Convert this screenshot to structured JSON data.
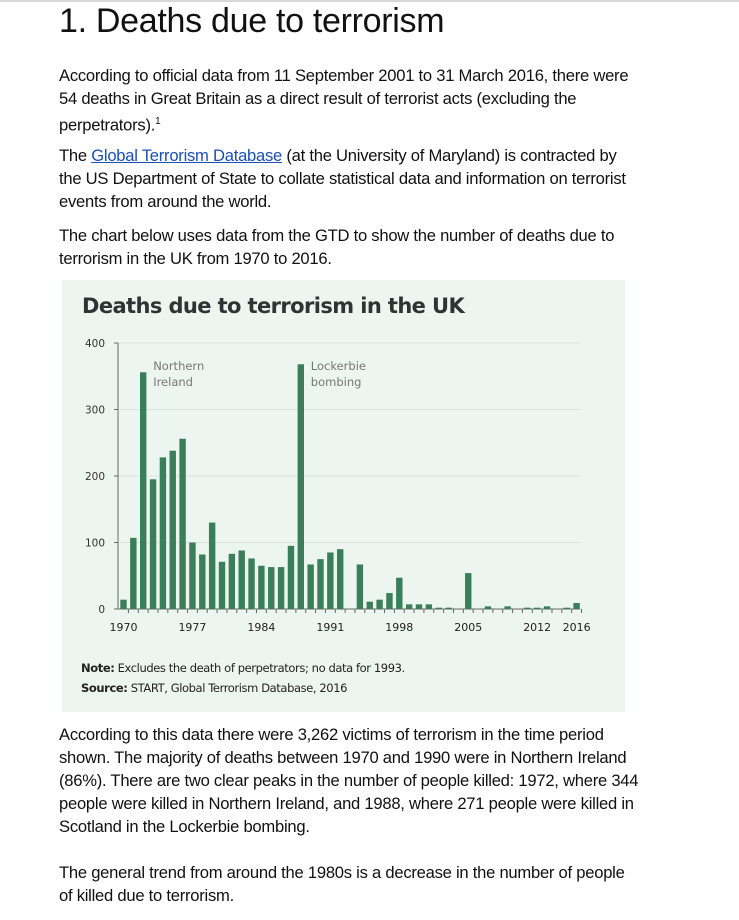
{
  "heading": "1. Deaths due to terrorism",
  "paragraphs": {
    "p1": "According to official data from 11 September 2001 to 31 March 2016, there were 54 deaths in Great Britain as a direct result of terrorist acts (excluding the perpetrators).",
    "p1_footnote": "1",
    "p2_before": "The ",
    "p2_link": "Global Terrorism Database",
    "p2_after": " (at the University of Maryland) is contracted by the US Department of State to collate statistical data and information on terrorist events from around the world.",
    "p3": "The chart below uses data from the GTD to show the number of deaths due to terrorism in the UK from 1970 to 2016.",
    "p4": "According to this data there were 3,262 victims of terrorism in the time period shown. The majority of deaths between 1970 and 1990 were in Northern Ireland (86%). There are two clear peaks in the number of people killed: 1972, where 344 people were killed in Northern Ireland, and 1988, where 271 people were killed in Scotland in the Lockerbie bombing.",
    "p5": "The general trend from around the 1980s is a decrease in the number of people of killed due to terrorism."
  },
  "chart_note": {
    "note_label": "Note:",
    "note_text": " Excludes the death of perpetrators; no data for 1993.",
    "source_label": "Source:",
    "source_text": " START, Global Terrorism Database, 2016"
  },
  "colors": {
    "bar": "#3a7f5a",
    "panel": "#edf5f1",
    "link": "#1a4fb5"
  },
  "chart_data": {
    "type": "bar",
    "title": "Deaths due to terrorism in the UK",
    "xlabel": "",
    "ylabel": "",
    "ylim": [
      0,
      400
    ],
    "yticks": [
      0,
      100,
      200,
      300,
      400
    ],
    "xtick_labels": [
      "1970",
      "1977",
      "1984",
      "1991",
      "1998",
      "2005",
      "2012",
      "2016"
    ],
    "grid": true,
    "annotations": [
      {
        "text": [
          "Northern",
          "Ireland"
        ],
        "year": 1972
      },
      {
        "text": [
          "Lockerbie",
          "bombing"
        ],
        "year": 1988
      }
    ],
    "categories": [
      1970,
      1971,
      1972,
      1973,
      1974,
      1975,
      1976,
      1977,
      1978,
      1979,
      1980,
      1981,
      1982,
      1983,
      1984,
      1985,
      1986,
      1987,
      1988,
      1989,
      1990,
      1991,
      1992,
      1993,
      1994,
      1995,
      1996,
      1997,
      1998,
      1999,
      2000,
      2001,
      2002,
      2003,
      2004,
      2005,
      2006,
      2007,
      2008,
      2009,
      2010,
      2011,
      2012,
      2013,
      2014,
      2015,
      2016
    ],
    "values": [
      14,
      107,
      356,
      195,
      228,
      238,
      256,
      100,
      82,
      130,
      71,
      83,
      88,
      76,
      65,
      63,
      63,
      95,
      368,
      67,
      75,
      85,
      90,
      null,
      67,
      11,
      14,
      24,
      47,
      7,
      7,
      7,
      2,
      2,
      0,
      54,
      0,
      4,
      0,
      4,
      0,
      2,
      2,
      4,
      0,
      2,
      9
    ]
  }
}
